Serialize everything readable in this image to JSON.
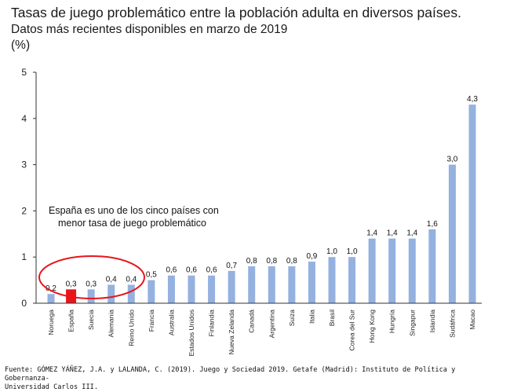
{
  "header": {
    "title": "Tasas de juego problemático entre la población adulta en diversos países.",
    "subtitle": "Datos más recientes disponibles en marzo de 2019",
    "unit": "(%)"
  },
  "annotation": {
    "line1": "España es uno de los cinco países con",
    "line2": "menor tasa de juego problemático"
  },
  "source": {
    "line1": "Fuente: GÓMEZ YÁÑEZ, J.A. y LALANDA, C. (2019). Juego y Sociedad 2019. Getafe (Madrid): Instituto de Política y Gobernanza-",
    "line2": "Universidad Carlos III."
  },
  "colors": {
    "bar": "#94b1df",
    "highlight": "#e8151b",
    "ellipse": "#e8151b",
    "axis": "#333333"
  },
  "chart_data": {
    "type": "bar",
    "title": "Tasas de juego problemático entre la población adulta en diversos países.",
    "ylabel": "(%)",
    "xlabel": "",
    "ylim": [
      0,
      5
    ],
    "yticks": [
      "0",
      "1",
      "2",
      "3",
      "4",
      "5"
    ],
    "ytick_values": [
      0,
      1,
      2,
      3,
      4,
      5
    ],
    "highlight": "España",
    "grid": false,
    "categories": [
      "Noruega",
      "España",
      "Suecia",
      "Alemania",
      "Reino Unido",
      "Francia",
      "Australia",
      "Estados Unidos",
      "Finlandia",
      "Nueva Zelanda",
      "Canadá",
      "Argentina",
      "Suiza",
      "Italia",
      "Brasil",
      "Corea del Sur",
      "Hong Kong",
      "Hungría",
      "Singapur",
      "Islandia",
      "Sudáfrica",
      "Macao"
    ],
    "values": [
      0.2,
      0.3,
      0.3,
      0.4,
      0.4,
      0.5,
      0.6,
      0.6,
      0.6,
      0.7,
      0.8,
      0.8,
      0.8,
      0.9,
      1.0,
      1.0,
      1.4,
      1.4,
      1.4,
      1.6,
      3.0,
      4.3
    ],
    "labels": [
      "0,2",
      "0,3",
      "0,3",
      "0,4",
      "0,4",
      "0,5",
      "0,6",
      "0,6",
      "0,6",
      "0,7",
      "0,8",
      "0,8",
      "0,8",
      "0,9",
      "1,0",
      "1,0",
      "1,4",
      "1,4",
      "1,4",
      "1,6",
      "3,0",
      "4,3"
    ]
  }
}
